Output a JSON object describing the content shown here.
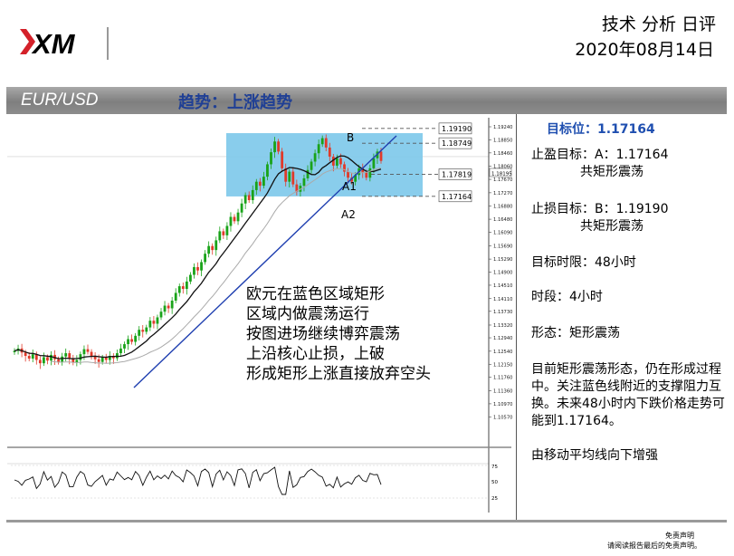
{
  "header": {
    "brand": "XM",
    "title": "技术 分析 日评",
    "date": "2020年08月14日"
  },
  "band": {
    "pair": "EUR/USD",
    "trend": "趋势：上涨趋势"
  },
  "panel": {
    "target_label": "目标位：1.17164",
    "take_profit_line1": "止盈目标：A：1.17164",
    "take_profit_line2": "共矩形震荡",
    "stop_loss_line1": "止损目标：B：1.19190",
    "stop_loss_line2": "共矩形震荡",
    "time_limit": "目标时限：48小时",
    "period": "时段：4小时",
    "pattern": "形态：矩形震荡",
    "summary": "目前矩形震荡形态，仍在形成过程中。关注蓝色线附近的支撑阻力互换。未来48小时内下跌价格走势可能到1.17164。",
    "ma_note": "由移动平均线向下增强"
  },
  "chart_note": [
    "欧元在蓝色区域矩形",
    "区域内做震荡运行",
    "按图进场继续博弈震荡",
    "上沿核心止损，上破",
    "形成矩形上涨直接放弃空头"
  ],
  "footer": {
    "line1": "免责声明",
    "line2": "请阅读报告最后的免责声明。"
  },
  "colors": {
    "up": "#19a319",
    "down": "#e03a2a",
    "box": "#7cc8ea",
    "trendline": "#1f3fb0",
    "accent": "#1f4fb0"
  },
  "chart_data": {
    "type": "candlestick",
    "ylim": [
      1.0967,
      1.1924
    ],
    "y_ticks": [
      1.1924,
      1.1885,
      1.1846,
      1.1806,
      1.1767,
      1.1727,
      1.1688,
      1.1648,
      1.1609,
      1.1569,
      1.1529,
      1.149,
      1.1451,
      1.1411,
      1.1373,
      1.1332,
      1.1294,
      1.1254,
      1.1215,
      1.1176,
      1.1136,
      1.1097,
      1.1057
    ],
    "current_price": "1.18195",
    "levels": [
      {
        "label": "1.19190",
        "value": 1.1919
      },
      {
        "label": "1.18749",
        "value": 1.18749
      },
      {
        "label": "1.17819",
        "value": 1.17819
      },
      {
        "label": "1.17164",
        "value": 1.17164
      }
    ],
    "annotations": [
      "B",
      "A1",
      "A2"
    ],
    "rsi_ticks": [
      "75",
      "50",
      "25"
    ],
    "closes": [
      1.1255,
      1.1262,
      1.125,
      1.124,
      1.1232,
      1.1245,
      1.1228,
      1.1218,
      1.1236,
      1.1226,
      1.1243,
      1.123,
      1.1222,
      1.1238,
      1.1248,
      1.1232,
      1.122,
      1.1228,
      1.1245,
      1.126,
      1.1252,
      1.124,
      1.123,
      1.1222,
      1.1235,
      1.1228,
      1.124,
      1.1233,
      1.1248,
      1.1262,
      1.1275,
      1.129,
      1.1282,
      1.13,
      1.1318,
      1.1312,
      1.1325,
      1.1345,
      1.1336,
      1.1355,
      1.1372,
      1.139,
      1.1382,
      1.1405,
      1.1428,
      1.1448,
      1.144,
      1.1462,
      1.1482,
      1.1505,
      1.1495,
      1.152,
      1.1545,
      1.1568,
      1.1556,
      1.1585,
      1.1612,
      1.16,
      1.1628,
      1.1655,
      1.1642,
      1.1668,
      1.1695,
      1.172,
      1.1705,
      1.1735,
      1.176,
      1.1748,
      1.1775,
      1.1812,
      1.1848,
      1.188,
      1.185,
      1.18,
      1.176,
      1.179,
      1.1752,
      1.173,
      1.1748,
      1.177,
      1.1795,
      1.182,
      1.1845,
      1.1872,
      1.189,
      1.1862,
      1.1835,
      1.1808,
      1.183,
      1.1812,
      1.179,
      1.1772,
      1.176,
      1.178,
      1.18,
      1.1788,
      1.1772,
      1.18,
      1.183,
      1.185,
      1.1822
    ]
  }
}
